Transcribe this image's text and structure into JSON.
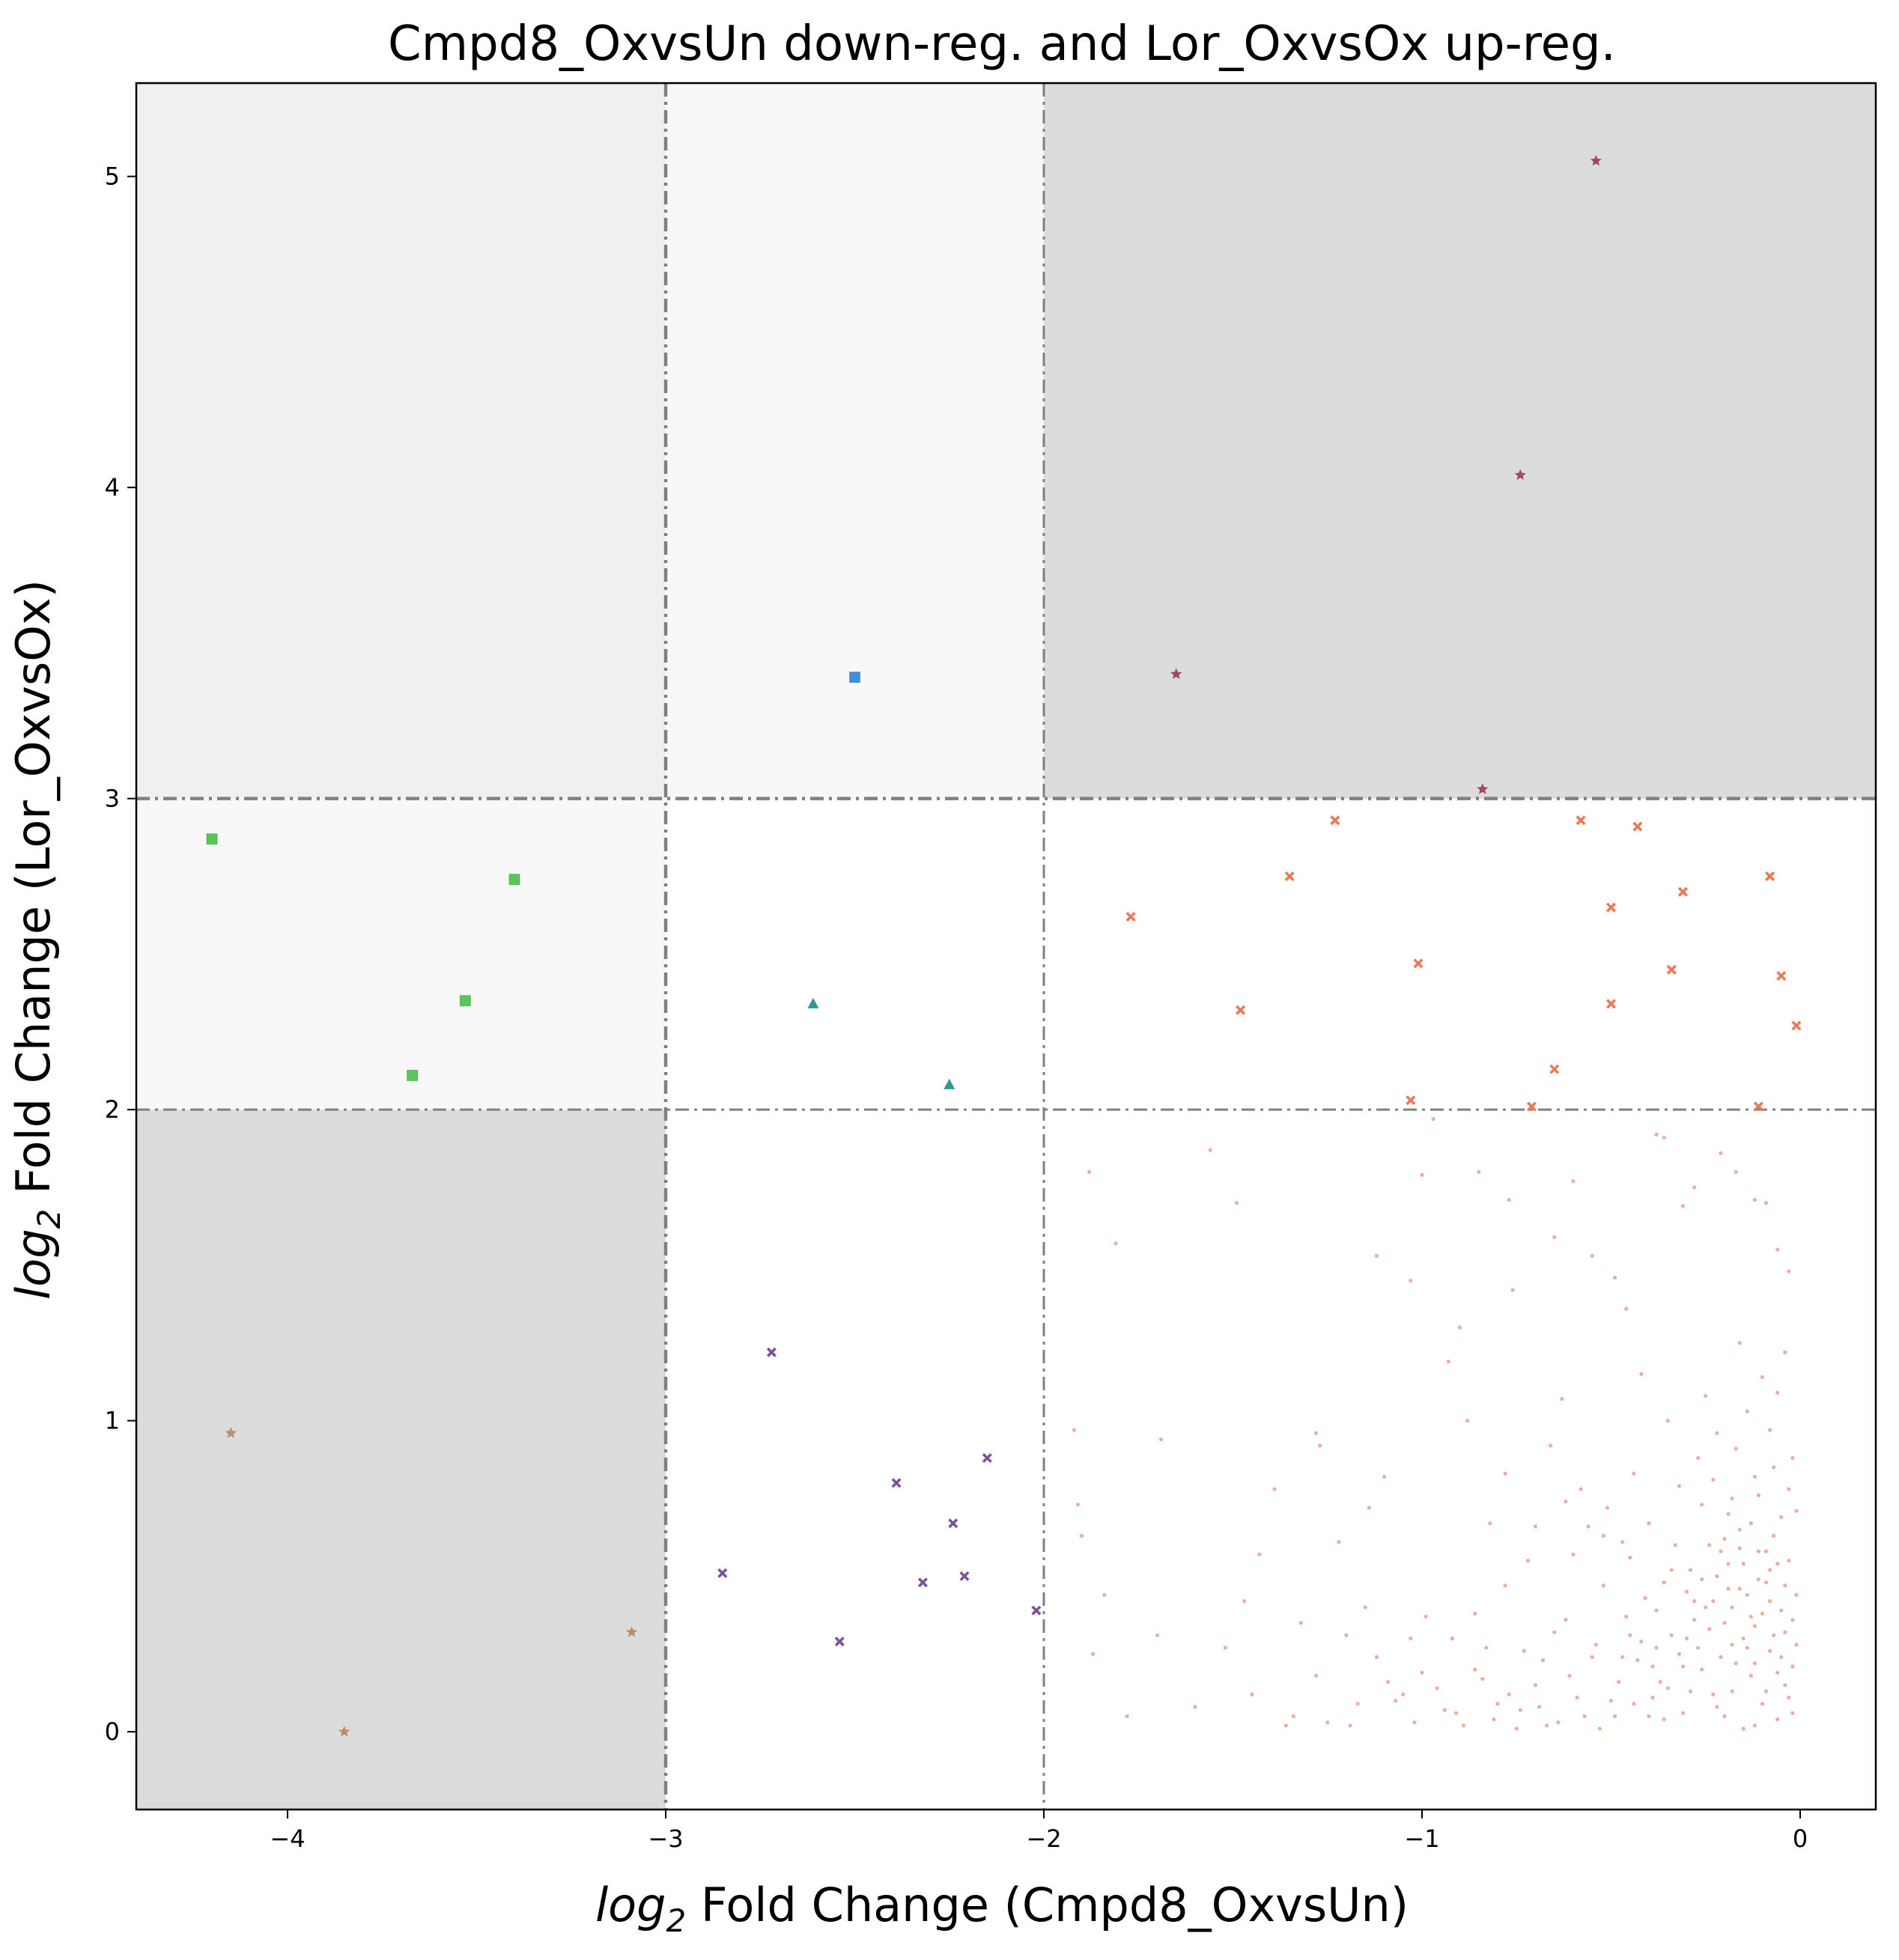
{
  "chart_data": {
    "type": "scatter",
    "title": "Cmpd8_OxvsUn down-reg. and Lor_OxvsOx up-reg.",
    "xlabel": {
      "prefix": "log",
      "sub": "2",
      "rest": " Fold Change (Cmpd8_OxvsUn)"
    },
    "ylabel": {
      "prefix": "log",
      "sub": "2",
      "rest": " Fold Change (Lor_OxvsOx)"
    },
    "xlim": [
      -4.4,
      0.2
    ],
    "ylim": [
      -0.25,
      5.3
    ],
    "xticks": [
      -4,
      -3,
      -2,
      -1,
      0
    ],
    "xtick_labels": [
      "−4",
      "−3",
      "−2",
      "−1",
      "0"
    ],
    "yticks": [
      0,
      1,
      2,
      3,
      4,
      5
    ],
    "ytick_labels": [
      "0",
      "1",
      "2",
      "3",
      "4",
      "5"
    ],
    "grid": false,
    "thresholds": {
      "x": [
        -3,
        -2
      ],
      "y": [
        2,
        3
      ]
    },
    "regions": [
      {
        "x": [
          -4.4,
          -3
        ],
        "y": [
          -0.25,
          2
        ],
        "color": "#dcdcdc"
      },
      {
        "x": [
          -2,
          0.2
        ],
        "y": [
          3,
          5.3
        ],
        "color": "#dcdcdc"
      },
      {
        "x": [
          -4.4,
          -3
        ],
        "y": [
          3,
          5.3
        ],
        "color": "#f0f0f0"
      },
      {
        "x": [
          -4.4,
          -3
        ],
        "y": [
          2,
          3
        ],
        "color": "#f8f8f8"
      },
      {
        "x": [
          -3,
          -2
        ],
        "y": [
          3,
          5.3
        ],
        "color": "#f8f8f8"
      }
    ],
    "series": [
      {
        "marker": "star",
        "color": "#a04860",
        "points": [
          [
            -0.54,
            5.05
          ],
          [
            -0.74,
            4.04
          ],
          [
            -1.65,
            3.4
          ],
          [
            -0.84,
            3.03
          ]
        ]
      },
      {
        "marker": "square",
        "color": "#3c8fe0",
        "points": [
          [
            -2.5,
            3.39
          ]
        ]
      },
      {
        "marker": "square",
        "color": "#55c957",
        "points": [
          [
            -4.2,
            2.87
          ],
          [
            -3.4,
            2.74
          ],
          [
            -3.53,
            2.35
          ],
          [
            -3.67,
            2.11
          ]
        ]
      },
      {
        "marker": "triangle",
        "color": "#2f9a92",
        "points": [
          [
            -2.61,
            2.34
          ],
          [
            -2.25,
            2.08
          ]
        ]
      },
      {
        "marker": "x",
        "color": "#ec7752",
        "points": [
          [
            -1.23,
            2.93
          ],
          [
            -0.58,
            2.93
          ],
          [
            -0.43,
            2.91
          ],
          [
            -1.35,
            2.75
          ],
          [
            -0.08,
            2.75
          ],
          [
            -1.77,
            2.62
          ],
          [
            -0.31,
            2.7
          ],
          [
            -0.5,
            2.65
          ],
          [
            -1.01,
            2.47
          ],
          [
            -0.34,
            2.45
          ],
          [
            -0.05,
            2.43
          ],
          [
            -1.48,
            2.32
          ],
          [
            -0.5,
            2.34
          ],
          [
            -0.01,
            2.27
          ],
          [
            -0.65,
            2.13
          ],
          [
            -1.03,
            2.03
          ],
          [
            -0.71,
            2.01
          ],
          [
            -0.11,
            2.01
          ]
        ]
      },
      {
        "marker": "x",
        "color": "#7a5299",
        "points": [
          [
            -2.72,
            1.22
          ],
          [
            -2.15,
            0.88
          ],
          [
            -2.39,
            0.8
          ],
          [
            -2.24,
            0.67
          ],
          [
            -2.85,
            0.51
          ],
          [
            -2.21,
            0.5
          ],
          [
            -2.32,
            0.48
          ],
          [
            -2.02,
            0.39
          ],
          [
            -2.54,
            0.29
          ]
        ]
      },
      {
        "marker": "star",
        "color": "#b89070",
        "points": [
          [
            -4.15,
            0.96
          ],
          [
            -3.09,
            0.32
          ],
          [
            -3.85,
            0.0
          ]
        ]
      },
      {
        "marker": "dot",
        "color": "#e07a58",
        "points": [
          [
            -1.92,
            0.97
          ],
          [
            -1.88,
            1.8
          ],
          [
            -1.81,
            1.57
          ],
          [
            -1.69,
            0.94
          ],
          [
            -1.56,
            1.87
          ],
          [
            -1.49,
            1.7
          ],
          [
            -1.47,
            0.42
          ],
          [
            -1.43,
            0.57
          ],
          [
            -1.39,
            0.78
          ],
          [
            -1.28,
            0.96
          ],
          [
            -1.22,
            0.61
          ],
          [
            -1.12,
            1.53
          ],
          [
            -1.1,
            0.82
          ],
          [
            -1.03,
            1.45
          ],
          [
            -1.0,
            1.79
          ],
          [
            -0.97,
            1.97
          ],
          [
            -0.9,
            1.3
          ],
          [
            -0.85,
            1.8
          ],
          [
            -0.82,
            0.67
          ],
          [
            -0.77,
            1.71
          ],
          [
            -0.76,
            1.42
          ],
          [
            -0.65,
            1.59
          ],
          [
            -0.6,
            1.77
          ],
          [
            -0.55,
            1.53
          ],
          [
            -0.49,
            1.46
          ],
          [
            -0.46,
            1.36
          ],
          [
            -0.42,
            1.15
          ],
          [
            -0.38,
            1.92
          ],
          [
            -0.36,
            1.91
          ],
          [
            -0.31,
            1.69
          ],
          [
            -0.28,
            1.75
          ],
          [
            -0.21,
            1.86
          ],
          [
            -0.17,
            1.8
          ],
          [
            -0.12,
            1.71
          ],
          [
            -0.09,
            1.7
          ],
          [
            -0.06,
            1.55
          ],
          [
            -0.03,
            1.48
          ],
          [
            -1.91,
            0.73
          ],
          [
            -1.87,
            0.25
          ],
          [
            -1.32,
            0.35
          ],
          [
            -1.27,
            0.92
          ],
          [
            -1.19,
            0.02
          ],
          [
            -1.14,
            0.72
          ],
          [
            -1.07,
            0.1
          ],
          [
            -0.99,
            0.37
          ],
          [
            -0.93,
            1.19
          ],
          [
            -0.88,
            1.0
          ],
          [
            -0.78,
            0.83
          ],
          [
            -0.72,
            0.55
          ],
          [
            -0.67,
            0.02
          ],
          [
            -0.63,
            1.07
          ],
          [
            -0.58,
            0.78
          ],
          [
            -0.52,
            0.63
          ],
          [
            -0.47,
            0.24
          ],
          [
            -0.44,
            0.83
          ],
          [
            -0.39,
            0.11
          ],
          [
            -0.35,
            1.0
          ],
          [
            -0.33,
            0.6
          ],
          [
            -0.3,
            0.3
          ],
          [
            -0.27,
            0.88
          ],
          [
            -0.25,
            0.4
          ],
          [
            -0.23,
            0.12
          ],
          [
            -0.22,
            0.5
          ],
          [
            -0.2,
            0.05
          ],
          [
            -0.19,
            0.7
          ],
          [
            -0.18,
            0.28
          ],
          [
            -0.17,
            0.22
          ],
          [
            -0.16,
            0.65
          ],
          [
            -0.15,
            0.01
          ],
          [
            -0.14,
            0.44
          ],
          [
            -0.13,
            0.18
          ],
          [
            -0.12,
            0.34
          ],
          [
            -0.11,
            0.58
          ],
          [
            -0.1,
            0.09
          ],
          [
            -0.09,
            0.48
          ],
          [
            -0.08,
            0.26
          ],
          [
            -0.07,
            0.63
          ],
          [
            -0.06,
            0.04
          ],
          [
            -0.05,
            0.39
          ],
          [
            -0.04,
            0.15
          ],
          [
            -0.03,
            0.55
          ],
          [
            -0.02,
            0.21
          ],
          [
            -0.01,
            0.44
          ],
          [
            -0.02,
            0.06
          ],
          [
            -0.04,
            0.32
          ],
          [
            -0.06,
            0.19
          ],
          [
            -0.08,
            0.52
          ],
          [
            -0.1,
            0.38
          ],
          [
            -0.12,
            0.02
          ],
          [
            -0.14,
            0.27
          ],
          [
            -0.16,
            0.46
          ],
          [
            -0.18,
            0.13
          ],
          [
            -0.2,
            0.35
          ],
          [
            -0.22,
            0.08
          ],
          [
            -0.24,
            0.6
          ],
          [
            -0.26,
            0.2
          ],
          [
            -0.28,
            0.42
          ],
          [
            -0.31,
            0.06
          ],
          [
            -0.34,
            0.31
          ],
          [
            -0.37,
            0.16
          ],
          [
            -0.4,
            0.05
          ],
          [
            -0.43,
            0.23
          ],
          [
            -0.46,
            0.37
          ],
          [
            -0.5,
            0.1
          ],
          [
            -0.54,
            0.28
          ],
          [
            -0.57,
            0.05
          ],
          [
            -0.61,
            0.18
          ],
          [
            -0.65,
            0.32
          ],
          [
            -0.69,
            0.08
          ],
          [
            -0.73,
            0.26
          ],
          [
            -0.77,
            0.12
          ],
          [
            -0.81,
            0.04
          ],
          [
            -0.86,
            0.2
          ],
          [
            -0.91,
            0.06
          ],
          [
            -0.96,
            0.14
          ],
          [
            -1.02,
            0.03
          ],
          [
            -1.09,
            0.16
          ],
          [
            -1.17,
            0.09
          ],
          [
            -1.25,
            0.03
          ],
          [
            -1.34,
            0.05
          ],
          [
            -0.66,
            0.92
          ],
          [
            -0.62,
            0.74
          ],
          [
            -0.56,
            0.66
          ],
          [
            -0.51,
            0.72
          ],
          [
            -0.45,
            0.56
          ],
          [
            -0.4,
            0.67
          ],
          [
            -0.36,
            0.48
          ],
          [
            -0.32,
            0.79
          ],
          [
            -0.29,
            0.52
          ],
          [
            -0.26,
            0.73
          ],
          [
            -0.23,
            0.81
          ],
          [
            -0.21,
            0.58
          ],
          [
            -0.19,
            0.46
          ],
          [
            -0.17,
            0.91
          ],
          [
            -0.15,
            0.54
          ],
          [
            -0.13,
            0.67
          ],
          [
            -0.11,
            0.76
          ],
          [
            -0.09,
            0.58
          ],
          [
            -0.07,
            0.85
          ],
          [
            -0.05,
            0.69
          ],
          [
            -0.03,
            0.78
          ],
          [
            -0.01,
            0.71
          ],
          [
            -0.02,
            0.88
          ],
          [
            -0.04,
            1.22
          ],
          [
            -0.06,
            1.09
          ],
          [
            -0.08,
            0.97
          ],
          [
            -0.1,
            1.14
          ],
          [
            -0.12,
            0.82
          ],
          [
            -0.14,
            1.03
          ],
          [
            -0.16,
            1.25
          ],
          [
            -0.18,
            0.75
          ],
          [
            -0.2,
            0.62
          ],
          [
            -0.22,
            0.96
          ],
          [
            -0.25,
            1.08
          ],
          [
            -0.28,
            0.36
          ],
          [
            -0.31,
            0.21
          ],
          [
            -0.35,
            0.14
          ],
          [
            -0.38,
            0.27
          ],
          [
            -0.41,
            0.43
          ],
          [
            -0.44,
            0.09
          ],
          [
            -0.48,
            0.16
          ],
          [
            -0.53,
            0.01
          ],
          [
            -0.59,
            0.11
          ],
          [
            -0.64,
            0.03
          ],
          [
            -0.7,
            0.15
          ],
          [
            -0.75,
            0.01
          ],
          [
            -0.8,
            0.09
          ],
          [
            -0.84,
            0.17
          ],
          [
            -0.89,
            0.02
          ],
          [
            -0.94,
            0.07
          ],
          [
            -1.0,
            0.19
          ],
          [
            -1.05,
            0.12
          ],
          [
            -1.12,
            0.24
          ],
          [
            -1.2,
            0.31
          ],
          [
            -1.28,
            0.18
          ],
          [
            -1.36,
            0.02
          ],
          [
            -1.45,
            0.12
          ],
          [
            -1.52,
            0.27
          ],
          [
            -1.6,
            0.08
          ],
          [
            -1.7,
            0.31
          ],
          [
            -1.78,
            0.05
          ],
          [
            -1.84,
            0.44
          ],
          [
            -1.9,
            0.63
          ],
          [
            -0.86,
            0.38
          ],
          [
            -0.78,
            0.47
          ],
          [
            -0.7,
            0.66
          ],
          [
            -0.6,
            0.57
          ],
          [
            -0.52,
            0.47
          ],
          [
            -0.47,
            0.61
          ],
          [
            -0.42,
            0.29
          ],
          [
            -0.38,
            0.39
          ],
          [
            -0.34,
            0.52
          ],
          [
            -0.3,
            0.45
          ],
          [
            -0.27,
            0.27
          ],
          [
            -0.24,
            0.33
          ],
          [
            -0.21,
            0.24
          ],
          [
            -0.18,
            0.4
          ],
          [
            -0.15,
            0.3
          ],
          [
            -0.12,
            0.22
          ],
          [
            -0.09,
            0.13
          ],
          [
            -0.07,
            0.31
          ],
          [
            -0.05,
            0.24
          ],
          [
            -0.03,
            0.11
          ],
          [
            -0.01,
            0.28
          ],
          [
            -0.02,
            0.36
          ],
          [
            -0.04,
            0.47
          ],
          [
            -0.06,
            0.54
          ],
          [
            -0.08,
            0.42
          ],
          [
            -0.11,
            0.49
          ],
          [
            -0.13,
            0.37
          ],
          [
            -0.16,
            0.59
          ],
          [
            -0.19,
            0.54
          ],
          [
            -0.23,
            0.42
          ],
          [
            -0.26,
            0.49
          ],
          [
            -0.29,
            0.13
          ],
          [
            -0.32,
            0.25
          ],
          [
            -0.36,
            0.04
          ],
          [
            -0.39,
            0.21
          ],
          [
            -0.45,
            0.31
          ],
          [
            -0.49,
            0.05
          ],
          [
            -0.55,
            0.24
          ],
          [
            -0.62,
            0.36
          ],
          [
            -0.68,
            0.23
          ],
          [
            -0.74,
            0.07
          ],
          [
            -0.83,
            0.27
          ],
          [
            -0.92,
            0.3
          ],
          [
            -1.03,
            0.3
          ],
          [
            -1.15,
            0.4
          ]
        ]
      }
    ]
  }
}
